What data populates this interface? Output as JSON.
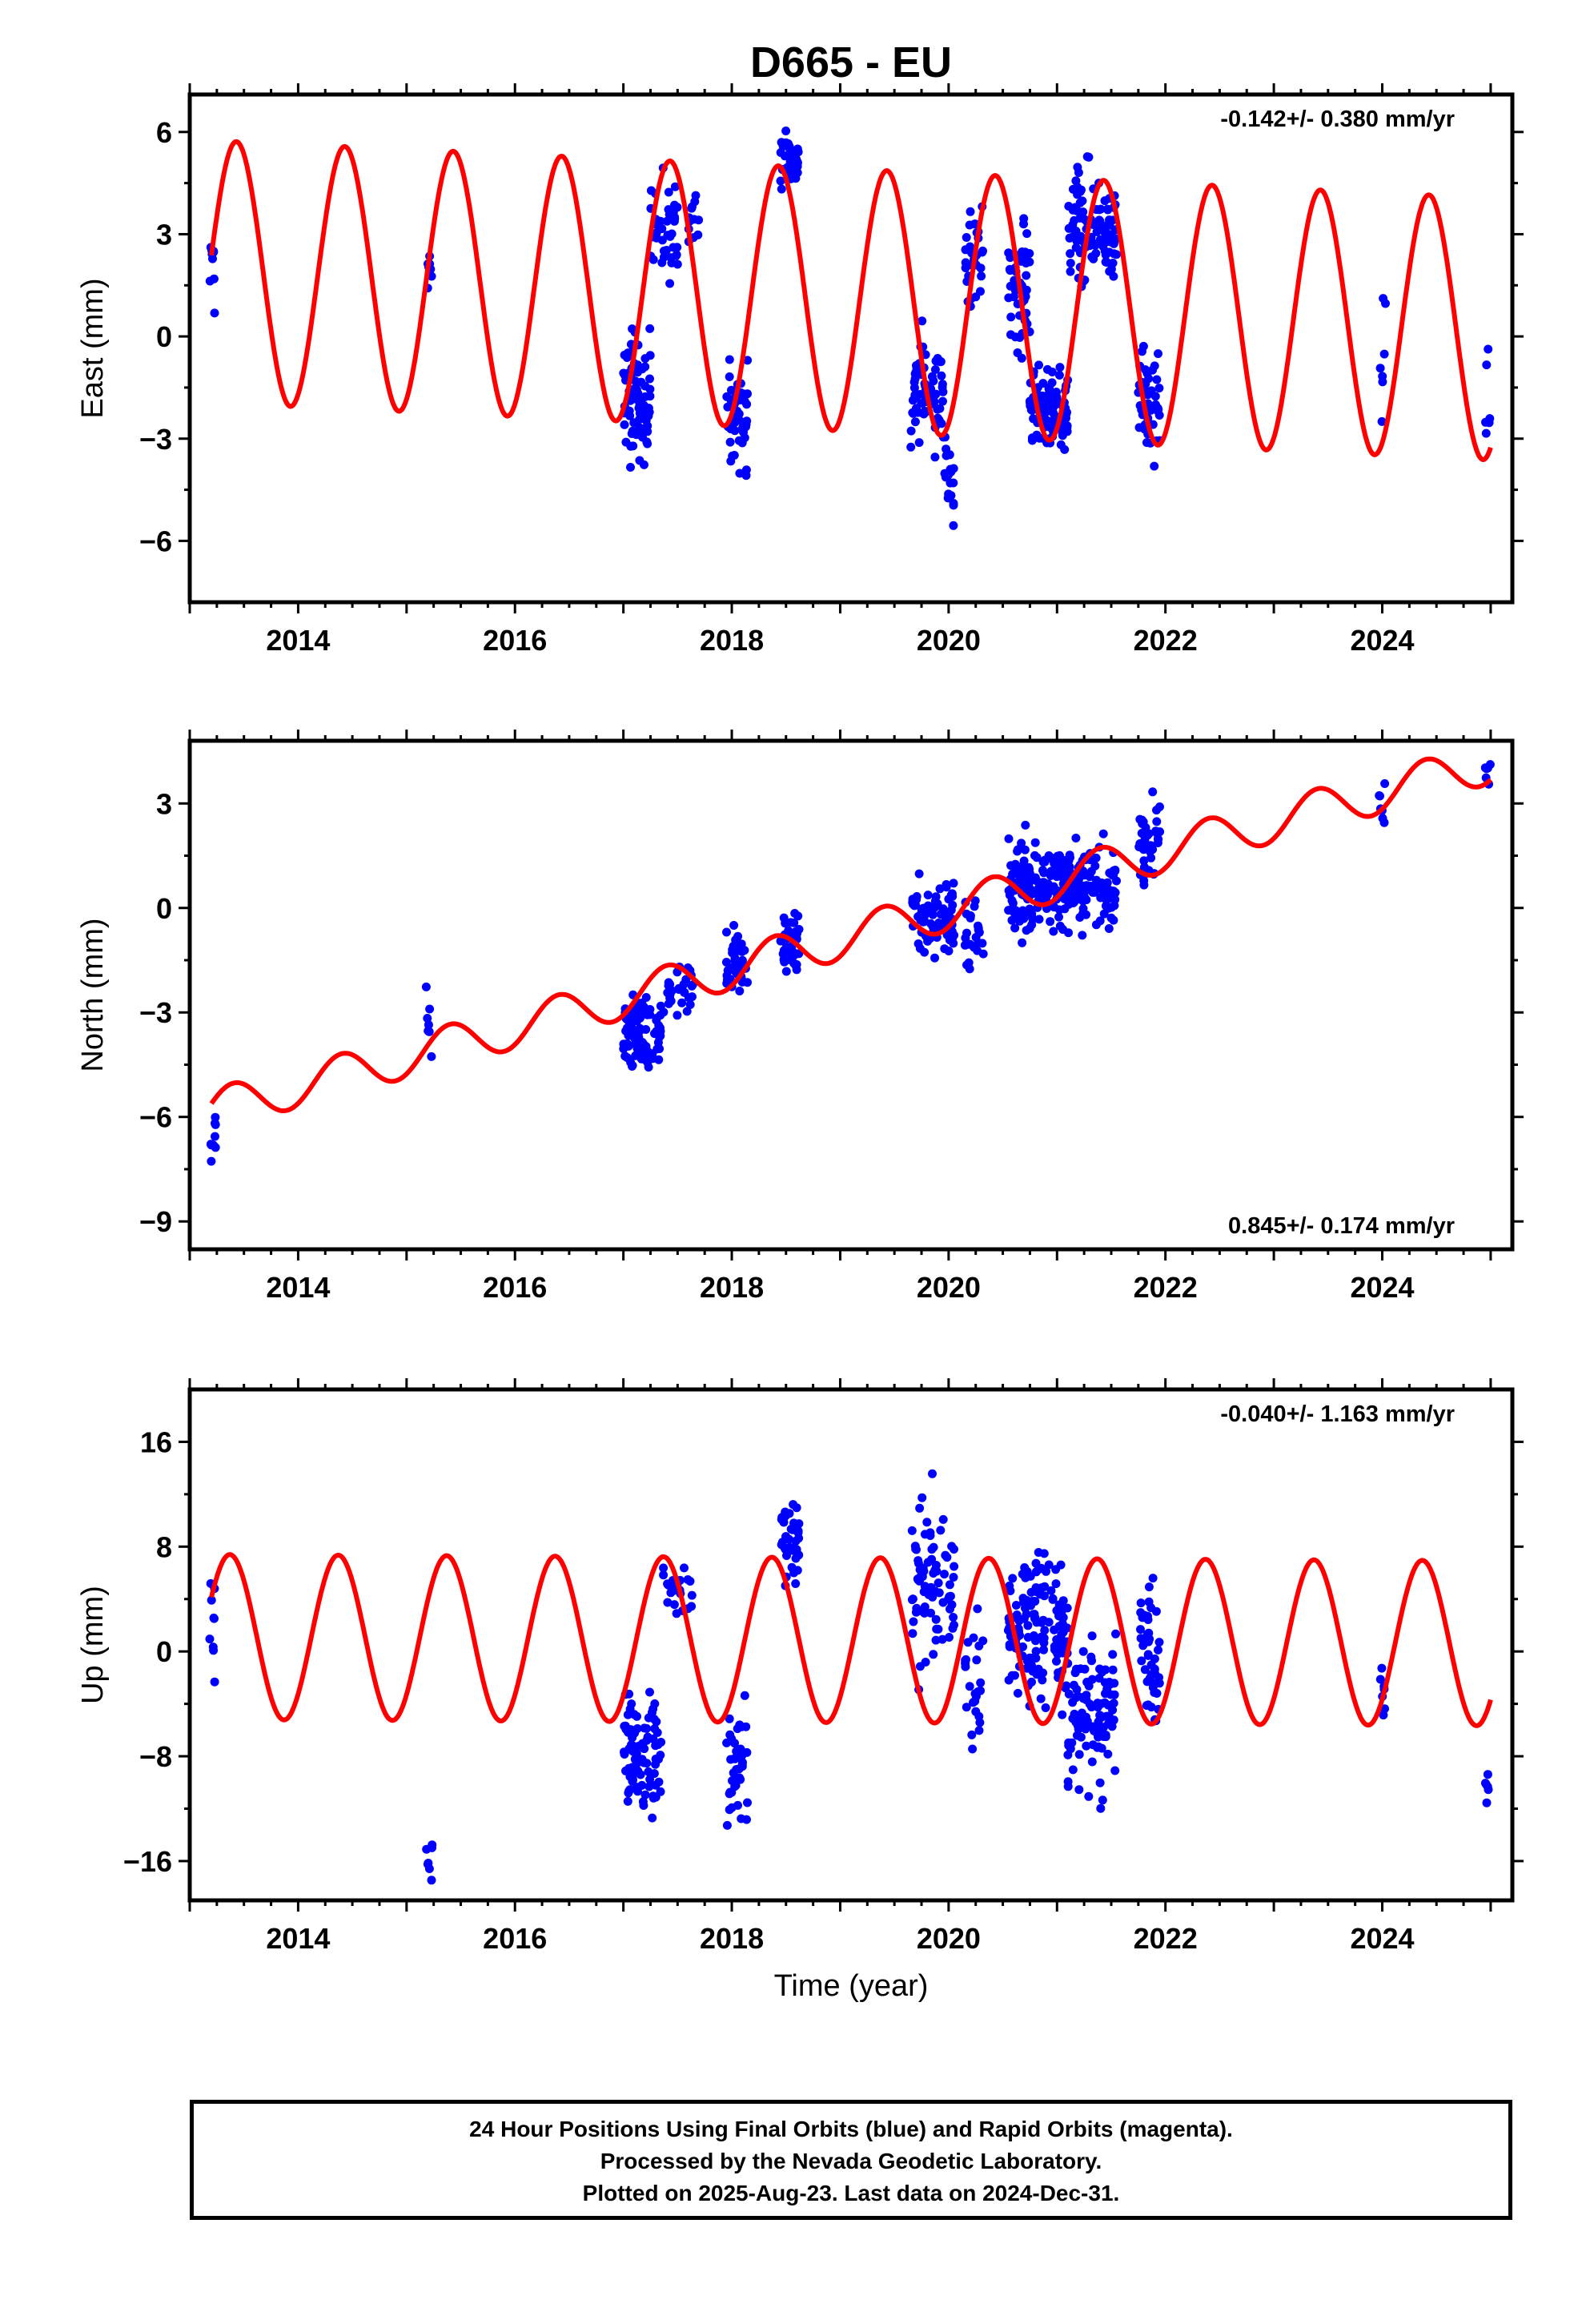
{
  "chart_data": {
    "type": "scatter",
    "title": "D665 - EU",
    "xlabel": "Time (year)",
    "x_ticks": [
      2014,
      2016,
      2018,
      2020,
      2022,
      2024
    ],
    "xlim": [
      2013.0,
      2025.2
    ],
    "grid": false,
    "series_colors": {
      "final_orbits": "#0000ff",
      "model_fit": "#ff0000"
    },
    "panels": [
      {
        "name": "east",
        "ylabel": "East (mm)",
        "ylim": [
          -7.8,
          7.1
        ],
        "y_ticks": [
          6,
          3,
          0,
          -3,
          -6
        ],
        "rate_label": "-0.142+/- 0.380 mm/yr",
        "rate_position": "top-right",
        "model": {
          "intercept": 1.9,
          "trend": -0.142,
          "t0": 2013.2,
          "amp": 3.85,
          "phase_year": 2013.43
        },
        "observations": [
          {
            "start": 2013.18,
            "end": 2013.24,
            "center": 1.8,
            "spread": 1.2,
            "n": 9
          },
          {
            "start": 2015.18,
            "end": 2015.24,
            "center": 2.2,
            "spread": 0.9,
            "n": 7
          },
          {
            "start": 2017.0,
            "end": 2017.25,
            "center": -1.8,
            "spread": 1.6,
            "n": 90
          },
          {
            "start": 2017.25,
            "end": 2017.5,
            "center": 3.0,
            "spread": 1.5,
            "n": 40
          },
          {
            "start": 2017.6,
            "end": 2017.7,
            "center": 3.6,
            "spread": 0.7,
            "n": 12
          },
          {
            "start": 2017.95,
            "end": 2018.15,
            "center": -2.3,
            "spread": 1.4,
            "n": 45
          },
          {
            "start": 2018.45,
            "end": 2018.62,
            "center": 5.2,
            "spread": 0.7,
            "n": 40
          },
          {
            "start": 2019.65,
            "end": 2019.95,
            "center": -1.6,
            "spread": 1.4,
            "n": 70
          },
          {
            "start": 2019.95,
            "end": 2020.05,
            "center": -4.0,
            "spread": 1.1,
            "n": 20
          },
          {
            "start": 2020.15,
            "end": 2020.32,
            "center": 2.3,
            "spread": 1.5,
            "n": 30
          },
          {
            "start": 2020.55,
            "end": 2020.75,
            "center": 1.5,
            "spread": 1.8,
            "n": 50
          },
          {
            "start": 2020.75,
            "end": 2021.1,
            "center": -2.2,
            "spread": 1.0,
            "n": 120
          },
          {
            "start": 2021.1,
            "end": 2021.55,
            "center": 3.2,
            "spread": 1.5,
            "n": 110
          },
          {
            "start": 2021.75,
            "end": 2021.95,
            "center": -2.0,
            "spread": 1.4,
            "n": 45
          },
          {
            "start": 2023.97,
            "end": 2024.03,
            "center": -0.8,
            "spread": 1.7,
            "n": 7
          },
          {
            "start": 2024.95,
            "end": 2025.0,
            "center": -2.0,
            "spread": 1.2,
            "n": 6
          }
        ]
      },
      {
        "name": "north",
        "ylabel": "North (mm)",
        "ylim": [
          -9.8,
          4.8
        ],
        "y_ticks": [
          3,
          0,
          -3,
          -6,
          -9
        ],
        "rate_label": "0.845+/- 0.174 mm/yr",
        "rate_position": "bottom-right",
        "model": {
          "intercept": -5.8,
          "trend": 0.845,
          "t0": 2013.2,
          "amp": 0.6,
          "phase_year": 2013.4
        },
        "observations": [
          {
            "start": 2013.18,
            "end": 2013.24,
            "center": -6.5,
            "spread": 0.7,
            "n": 9
          },
          {
            "start": 2015.18,
            "end": 2015.24,
            "center": -3.5,
            "spread": 0.9,
            "n": 7
          },
          {
            "start": 2017.0,
            "end": 2017.35,
            "center": -3.6,
            "spread": 0.9,
            "n": 90
          },
          {
            "start": 2017.35,
            "end": 2017.65,
            "center": -2.3,
            "spread": 0.6,
            "n": 30
          },
          {
            "start": 2017.95,
            "end": 2018.15,
            "center": -1.5,
            "spread": 0.8,
            "n": 40
          },
          {
            "start": 2018.45,
            "end": 2018.62,
            "center": -1.0,
            "spread": 0.9,
            "n": 40
          },
          {
            "start": 2019.65,
            "end": 2020.05,
            "center": -0.2,
            "spread": 1.1,
            "n": 80
          },
          {
            "start": 2020.15,
            "end": 2020.32,
            "center": -0.8,
            "spread": 1.1,
            "n": 25
          },
          {
            "start": 2020.55,
            "end": 2021.1,
            "center": 0.6,
            "spread": 1.1,
            "n": 150
          },
          {
            "start": 2021.1,
            "end": 2021.55,
            "center": 0.6,
            "spread": 1.0,
            "n": 110
          },
          {
            "start": 2021.75,
            "end": 2021.95,
            "center": 2.0,
            "spread": 1.0,
            "n": 45
          },
          {
            "start": 2023.97,
            "end": 2024.03,
            "center": 3.0,
            "spread": 0.6,
            "n": 7
          },
          {
            "start": 2024.95,
            "end": 2025.0,
            "center": 3.8,
            "spread": 0.4,
            "n": 6
          }
        ]
      },
      {
        "name": "up",
        "ylabel": "Up (mm)",
        "ylim": [
          -19,
          20
        ],
        "y_ticks": [
          16,
          8,
          0,
          -8,
          -16
        ],
        "rate_label": "-0.040+/- 1.163 mm/yr",
        "rate_position": "top-right",
        "model": {
          "intercept": 1.1,
          "trend": -0.04,
          "t0": 2013.2,
          "amp": 6.3,
          "phase_year": 2013.37
        },
        "observations": [
          {
            "start": 2013.18,
            "end": 2013.24,
            "center": 1.5,
            "spread": 4.0,
            "n": 9
          },
          {
            "start": 2015.18,
            "end": 2015.24,
            "center": -15.0,
            "spread": 2.0,
            "n": 7
          },
          {
            "start": 2017.0,
            "end": 2017.35,
            "center": -7.5,
            "spread": 4.0,
            "n": 90
          },
          {
            "start": 2017.35,
            "end": 2017.65,
            "center": 4.5,
            "spread": 2.5,
            "n": 25
          },
          {
            "start": 2017.95,
            "end": 2018.15,
            "center": -9.5,
            "spread": 4.5,
            "n": 40
          },
          {
            "start": 2018.45,
            "end": 2018.62,
            "center": 8.0,
            "spread": 3.0,
            "n": 40
          },
          {
            "start": 2019.65,
            "end": 2020.05,
            "center": 5.0,
            "spread": 5.5,
            "n": 80
          },
          {
            "start": 2020.15,
            "end": 2020.32,
            "center": -3.0,
            "spread": 4.0,
            "n": 25
          },
          {
            "start": 2020.55,
            "end": 2021.1,
            "center": 2.0,
            "spread": 5.0,
            "n": 150
          },
          {
            "start": 2021.1,
            "end": 2021.55,
            "center": -5.0,
            "spread": 5.0,
            "n": 110
          },
          {
            "start": 2021.75,
            "end": 2021.95,
            "center": 0.0,
            "spread": 5.0,
            "n": 45
          },
          {
            "start": 2023.97,
            "end": 2024.03,
            "center": -3.5,
            "spread": 3.0,
            "n": 7
          },
          {
            "start": 2024.95,
            "end": 2025.0,
            "center": -11.0,
            "spread": 1.8,
            "n": 6
          }
        ]
      }
    ]
  },
  "footer": {
    "line1": "24 Hour Positions Using Final Orbits (blue) and Rapid Orbits (magenta).",
    "line2": "Processed by the Nevada Geodetic Laboratory.",
    "line3": "Plotted on 2025-Aug-23. Last data on 2024-Dec-31."
  }
}
